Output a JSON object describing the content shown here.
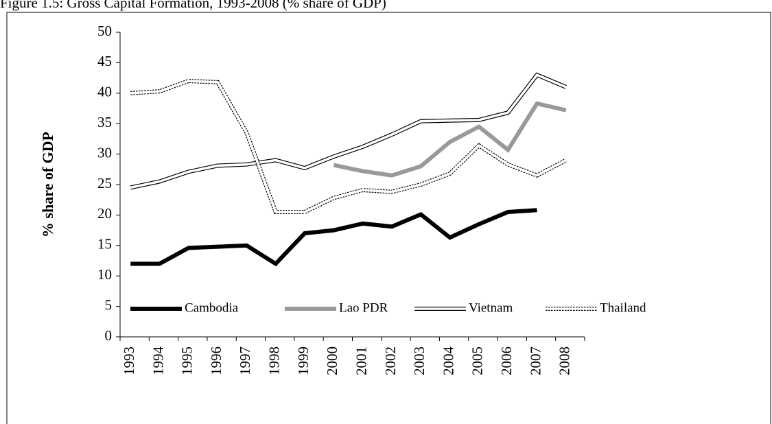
{
  "chart_data": {
    "type": "line",
    "title": "Figure 1.5: Gross Capital Formation, 1993-2008 (% share of GDP)",
    "y_label": "% share of GDP",
    "categories": [
      "1993",
      "1994",
      "1995",
      "1996",
      "1997",
      "1998",
      "1999",
      "2000",
      "2001",
      "2002",
      "2003",
      "2004",
      "2005",
      "2006",
      "2007",
      "2008"
    ],
    "series": [
      {
        "name": "Cambodia",
        "color": "#000000",
        "style": "solid-thick",
        "values": [
          12,
          12,
          14.6,
          14.8,
          15,
          12,
          17,
          17.5,
          18.6,
          18.1,
          20.1,
          16.3,
          18.5,
          20.5,
          20.8,
          null
        ]
      },
      {
        "name": "Lao PDR",
        "color": "#999999",
        "style": "solid-thick",
        "values": [
          null,
          null,
          null,
          null,
          null,
          null,
          null,
          28.2,
          27.2,
          26.5,
          28,
          32,
          34.5,
          30.7,
          38.3,
          37.2
        ]
      },
      {
        "name": "Vietnam",
        "color": "#000000",
        "style": "double",
        "values": [
          24.5,
          25.5,
          27.1,
          28.1,
          28.3,
          29,
          27.7,
          29.6,
          31.2,
          33.2,
          35.4,
          35.5,
          35.6,
          36.8,
          43,
          41
        ]
      },
      {
        "name": "Thailand",
        "color": "#000000",
        "style": "double-dotted",
        "values": [
          40,
          40.3,
          42,
          41.8,
          33.5,
          20.5,
          20.5,
          22.8,
          24.1,
          23.8,
          25,
          26.8,
          31.4,
          28.3,
          26.5,
          29
        ]
      }
    ],
    "ylim": [
      0,
      50
    ],
    "yticks": [
      0,
      5,
      10,
      15,
      20,
      25,
      30,
      35,
      40,
      45,
      50
    ],
    "grid": false,
    "legend": "bottom"
  }
}
